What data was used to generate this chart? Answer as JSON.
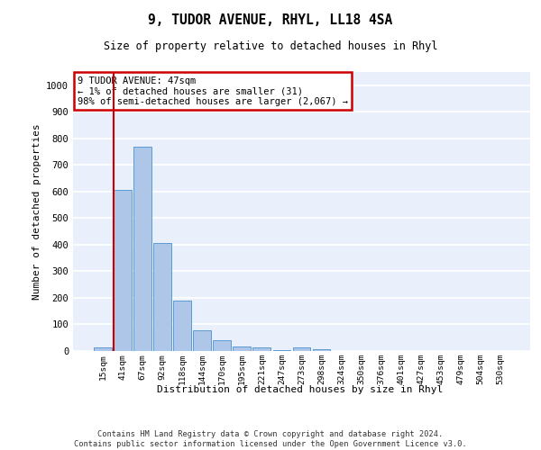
{
  "title1": "9, TUDOR AVENUE, RHYL, LL18 4SA",
  "title2": "Size of property relative to detached houses in Rhyl",
  "xlabel": "Distribution of detached houses by size in Rhyl",
  "ylabel": "Number of detached properties",
  "categories": [
    "15sqm",
    "41sqm",
    "67sqm",
    "92sqm",
    "118sqm",
    "144sqm",
    "170sqm",
    "195sqm",
    "221sqm",
    "247sqm",
    "273sqm",
    "298sqm",
    "324sqm",
    "350sqm",
    "376sqm",
    "401sqm",
    "427sqm",
    "453sqm",
    "479sqm",
    "504sqm",
    "530sqm"
  ],
  "values": [
    15,
    605,
    770,
    405,
    190,
    78,
    40,
    18,
    15,
    5,
    14,
    8,
    0,
    0,
    0,
    0,
    0,
    0,
    0,
    0,
    0
  ],
  "bar_color": "#aec6e8",
  "bar_edge_color": "#5b9bd5",
  "annotation_text": "9 TUDOR AVENUE: 47sqm\n← 1% of detached houses are smaller (31)\n98% of semi-detached houses are larger (2,067) →",
  "annotation_box_color": "#ffffff",
  "annotation_box_edge_color": "#cc0000",
  "vline_color": "#cc0000",
  "ylim": [
    0,
    1050
  ],
  "background_color": "#eaf0fb",
  "grid_color": "#ffffff",
  "footer": "Contains HM Land Registry data © Crown copyright and database right 2024.\nContains public sector information licensed under the Open Government Licence v3.0."
}
